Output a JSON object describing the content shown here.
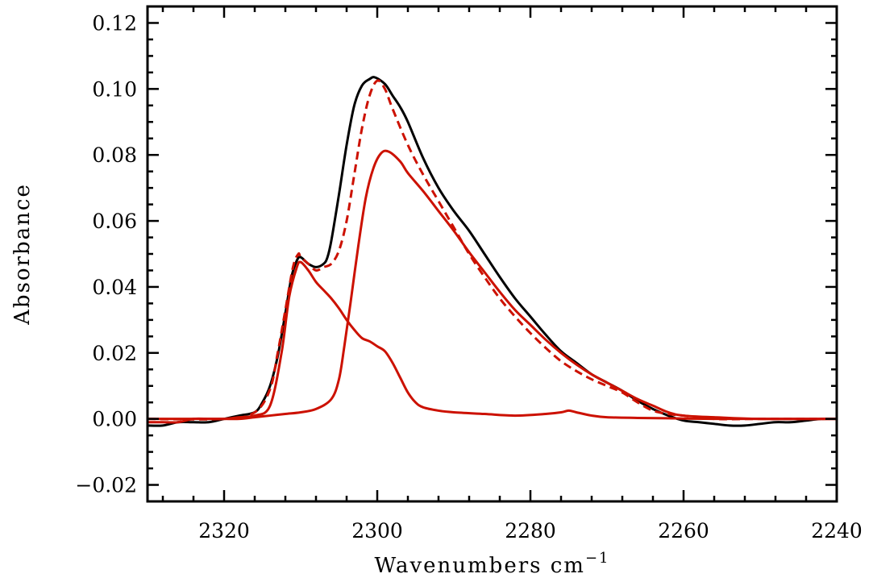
{
  "chart_data": {
    "type": "line",
    "title": "",
    "xlabel": "Wavenumbers cm",
    "xlabel_superscript": "−1",
    "ylabel": "Absorbance",
    "xlim": [
      2330,
      2240
    ],
    "ylim": [
      -0.025,
      0.125
    ],
    "xticks": [
      2320,
      2300,
      2280,
      2260,
      2240
    ],
    "xtick_labels": [
      "2320",
      "2300",
      "2280",
      "2260",
      "2240"
    ],
    "yticks": [
      -0.02,
      0.0,
      0.02,
      0.04,
      0.06,
      0.08,
      0.1,
      0.12
    ],
    "ytick_labels": [
      "−0.02",
      "0.00",
      "0.02",
      "0.04",
      "0.06",
      "0.08",
      "0.10",
      "0.12"
    ],
    "grid": false,
    "legend": "none",
    "series": [
      {
        "color": "#000000",
        "style": "solid",
        "x": [
          2330,
          2328,
          2326,
          2324,
          2322,
          2320,
          2318,
          2316,
          2315,
          2314,
          2313,
          2312,
          2311.2,
          2310.5,
          2310,
          2309,
          2308,
          2307,
          2306.5,
          2306,
          2305,
          2304,
          2303,
          2302,
          2301,
          2300.3,
          2299,
          2298,
          2297,
          2296,
          2294,
          2292,
          2290,
          2288,
          2286,
          2284,
          2282,
          2280,
          2278,
          2276,
          2274,
          2272,
          2270,
          2268,
          2266,
          2264,
          2262,
          2260,
          2258,
          2256,
          2254,
          2252,
          2250,
          2248,
          2246,
          2244,
          2242,
          2240
        ],
        "y": [
          -0.002,
          -0.002,
          -0.001,
          -0.001,
          -0.001,
          0.0,
          0.001,
          0.002,
          0.005,
          0.01,
          0.019,
          0.032,
          0.043,
          0.048,
          0.049,
          0.047,
          0.046,
          0.047,
          0.049,
          0.054,
          0.068,
          0.083,
          0.095,
          0.101,
          0.103,
          0.1035,
          0.1015,
          0.098,
          0.0945,
          0.09,
          0.079,
          0.07,
          0.063,
          0.057,
          0.05,
          0.043,
          0.0365,
          0.031,
          0.0255,
          0.0205,
          0.017,
          0.0135,
          0.011,
          0.0085,
          0.0055,
          0.003,
          0.001,
          -0.0005,
          -0.001,
          -0.0015,
          -0.002,
          -0.002,
          -0.0015,
          -0.001,
          -0.001,
          -0.0005,
          0.0,
          0.0
        ]
      },
      {
        "color": "#cc1100",
        "style": "dashed",
        "x": [
          2330,
          2320,
          2316,
          2314,
          2313,
          2312,
          2311,
          2310.3,
          2310,
          2309,
          2308,
          2307,
          2306,
          2305,
          2304,
          2303,
          2302,
          2301,
          2300,
          2299,
          2298,
          2296,
          2294,
          2292,
          2290,
          2288,
          2286,
          2284,
          2282,
          2280,
          2278,
          2276,
          2274,
          2272,
          2270,
          2268,
          2266,
          2264,
          2262,
          2260,
          2256,
          2250,
          2240
        ],
        "y": [
          0.0,
          0.0,
          0.002,
          0.009,
          0.02,
          0.033,
          0.046,
          0.05,
          0.049,
          0.047,
          0.045,
          0.046,
          0.047,
          0.051,
          0.06,
          0.074,
          0.088,
          0.098,
          0.1025,
          0.1,
          0.094,
          0.083,
          0.074,
          0.066,
          0.058,
          0.05,
          0.043,
          0.0365,
          0.031,
          0.026,
          0.0215,
          0.0175,
          0.0145,
          0.012,
          0.01,
          0.008,
          0.005,
          0.0025,
          0.0015,
          0.001,
          0.0,
          0.0,
          0.0
        ]
      },
      {
        "color": "#cc1100",
        "style": "solid",
        "x": [
          2330,
          2326,
          2322,
          2320,
          2318,
          2316,
          2314,
          2312,
          2310,
          2308,
          2306,
          2305,
          2304.3,
          2303.5,
          2302.5,
          2301.5,
          2300.5,
          2299.5,
          2298.5,
          2297,
          2296,
          2294,
          2292,
          2290,
          2288,
          2286,
          2284,
          2282,
          2280,
          2278,
          2276,
          2274,
          2272,
          2270,
          2268,
          2266,
          2264,
          2262,
          2260,
          2256,
          2250,
          2240
        ],
        "y": [
          0.0,
          0.0,
          0.0,
          0.0,
          0.0,
          0.0005,
          0.001,
          0.0015,
          0.002,
          0.003,
          0.006,
          0.012,
          0.022,
          0.035,
          0.052,
          0.067,
          0.076,
          0.0805,
          0.081,
          0.078,
          0.0745,
          0.069,
          0.063,
          0.057,
          0.0505,
          0.0445,
          0.0385,
          0.033,
          0.0285,
          0.024,
          0.02,
          0.0165,
          0.0135,
          0.011,
          0.0085,
          0.006,
          0.004,
          0.002,
          0.001,
          0.0005,
          0.0,
          0.0
        ]
      },
      {
        "color": "#cc1100",
        "style": "solid",
        "x": [
          2330,
          2328,
          2326,
          2324,
          2322,
          2320,
          2318,
          2316,
          2314,
          2312.5,
          2311.5,
          2310.5,
          2310,
          2309,
          2308,
          2307,
          2306,
          2305,
          2304,
          2303,
          2302,
          2301,
          2300,
          2299,
          2298,
          2297,
          2296,
          2295,
          2294,
          2292,
          2290,
          2286,
          2282,
          2278,
          2276,
          2275,
          2274,
          2272,
          2270,
          2266,
          2262,
          2260,
          2256,
          2250,
          2244,
          2240
        ],
        "y": [
          -0.001,
          -0.001,
          -0.001,
          0.0,
          0.0,
          0.0,
          0.0005,
          0.001,
          0.004,
          0.02,
          0.037,
          0.046,
          0.0475,
          0.045,
          0.0415,
          0.039,
          0.0365,
          0.0335,
          0.03,
          0.027,
          0.0245,
          0.0235,
          0.022,
          0.0205,
          0.017,
          0.0125,
          0.008,
          0.005,
          0.0035,
          0.0025,
          0.002,
          0.0015,
          0.001,
          0.0015,
          0.002,
          0.0025,
          0.002,
          0.001,
          0.0005,
          0.0003,
          0.0002,
          0.0001,
          0.0,
          0.0,
          0.0,
          0.0
        ]
      }
    ]
  }
}
